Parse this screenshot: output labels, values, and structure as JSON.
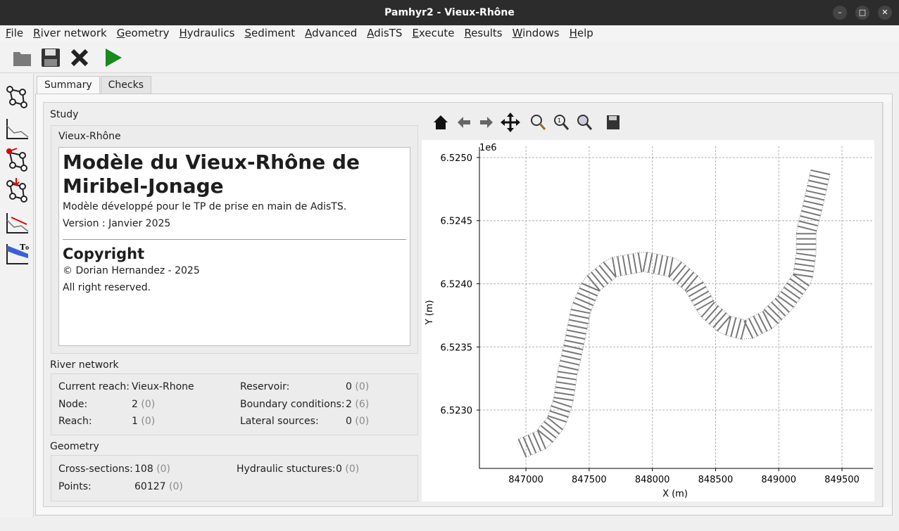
{
  "window": {
    "title": "Pamhyr2 - Vieux-Rhône"
  },
  "menu": [
    "File",
    "River network",
    "Geometry",
    "Hydraulics",
    "Sediment",
    "Advanced",
    "AdisTS",
    "Execute",
    "Results",
    "Windows",
    "Help"
  ],
  "toolbar": {
    "icons": [
      "folder-open-icon",
      "save-icon",
      "close-icon",
      "run-icon"
    ]
  },
  "sidebar": {
    "icons": [
      "network-icon",
      "geometry-icon",
      "boundary-condition-icon",
      "lateral-source-icon",
      "initial-condition-icon",
      "friction-icon"
    ]
  },
  "tabs": [
    "Summary",
    "Checks"
  ],
  "study": {
    "section": "Study",
    "name": "Vieux-Rhône",
    "title": "Modèle du Vieux-Rhône de Miribel-Jonage",
    "description": "Modèle développé pour le TP de prise en main de AdisTS.",
    "version": "Version : Janvier 2025",
    "copyright_heading": "Copyright",
    "copyright": "© Dorian Hernandez - 2025",
    "rights": "All right reserved."
  },
  "river_network": {
    "section": "River network",
    "current_reach_label": "Current reach:",
    "current_reach": "Vieux-Rhone",
    "node_label": "Node:",
    "node": "2",
    "node_extra": "(0)",
    "reach_label": "Reach:",
    "reach": "1",
    "reach_extra": "(0)",
    "reservoir_label": "Reservoir:",
    "reservoir": "0",
    "reservoir_extra": "(0)",
    "bc_label": "Boundary conditions:",
    "bc": "2",
    "bc_extra": "(6)",
    "lateral_label": "Lateral sources:",
    "lateral": "0",
    "lateral_extra": "(0)"
  },
  "geometry": {
    "section": "Geometry",
    "cs_label": "Cross-sections:",
    "cs": "108",
    "cs_extra": "(0)",
    "points_label": "Points:",
    "points": "60127",
    "points_extra": "(0)",
    "hs_label": "Hydraulic stuctures:",
    "hs": "0",
    "hs_extra": "(0)"
  },
  "plot_toolbar": [
    "home-icon",
    "back-icon",
    "forward-icon",
    "pan-icon",
    "zoom-icon",
    "zoom-1-icon",
    "zoom-fit-icon",
    "save-figure-icon"
  ],
  "chart_data": {
    "type": "line",
    "xlabel": "X (m)",
    "ylabel": "Y (m)",
    "y_offset_label": "1e6",
    "xlim": [
      846632,
      849745
    ],
    "ylim": [
      6522538,
      6525089
    ],
    "xticks": [
      847000,
      847500,
      848000,
      848500,
      849000,
      849500
    ],
    "xtick_labels": [
      "847000",
      "847500",
      "848000",
      "848500",
      "849000",
      "849500"
    ],
    "yticks": [
      6523000,
      6523500,
      6524000,
      6524500,
      6525000
    ],
    "ytick_labels": [
      "6.5230",
      "6.5235",
      "6.5240",
      "6.5245",
      "6.5250"
    ],
    "grid": true,
    "cross_section_count": 108,
    "line_color": "#777777",
    "centerline": [
      [
        846972,
        6522699
      ],
      [
        847128,
        6522766
      ],
      [
        847240,
        6522905
      ],
      [
        847295,
        6523072
      ],
      [
        847329,
        6523295
      ],
      [
        847379,
        6523518
      ],
      [
        847435,
        6523797
      ],
      [
        847518,
        6523992
      ],
      [
        847685,
        6524131
      ],
      [
        847936,
        6524175
      ],
      [
        848159,
        6524131
      ],
      [
        848326,
        6523992
      ],
      [
        848437,
        6523797
      ],
      [
        848577,
        6523674
      ],
      [
        848744,
        6523630
      ],
      [
        848911,
        6523713
      ],
      [
        849050,
        6523852
      ],
      [
        849189,
        6524047
      ],
      [
        849217,
        6524242
      ],
      [
        849217,
        6524409
      ],
      [
        849273,
        6524632
      ],
      [
        849329,
        6524883
      ]
    ]
  }
}
